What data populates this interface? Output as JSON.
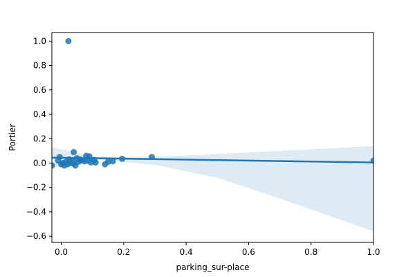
{
  "chart_data": {
    "type": "scatter",
    "title": "",
    "xlabel": "parking_sur-place",
    "ylabel": "Portier",
    "xlim": [
      -0.03,
      1.0
    ],
    "ylim": [
      -0.65,
      1.07
    ],
    "xticks": [
      0.0,
      0.2,
      0.4,
      0.6,
      0.8,
      1.0
    ],
    "xtick_labels": [
      "0.0",
      "0.2",
      "0.4",
      "0.6",
      "0.8",
      "1.0"
    ],
    "yticks": [
      1.0,
      0.8,
      0.6,
      0.4,
      0.2,
      0.0,
      -0.2,
      -0.4,
      -0.6
    ],
    "ytick_labels": [
      "1.0",
      "0.8",
      "0.6",
      "0.4",
      "0.2",
      "0.0",
      "−0.2",
      "−0.4",
      "−0.6"
    ],
    "grid": false,
    "colors": {
      "points": "#1f77b4",
      "line": "#1f77b4",
      "band": "#1f77b4"
    },
    "points": [
      {
        "x": -0.03,
        "y": -0.02
      },
      {
        "x": 0.023,
        "y": 1.0
      },
      {
        "x": -0.005,
        "y": 0.05
      },
      {
        "x": -0.01,
        "y": 0.02
      },
      {
        "x": 0.0,
        "y": -0.01
      },
      {
        "x": 0.005,
        "y": 0.0
      },
      {
        "x": 0.01,
        "y": -0.02
      },
      {
        "x": 0.015,
        "y": 0.01
      },
      {
        "x": 0.02,
        "y": -0.01
      },
      {
        "x": 0.025,
        "y": 0.03
      },
      {
        "x": 0.03,
        "y": 0.0
      },
      {
        "x": 0.035,
        "y": 0.02
      },
      {
        "x": 0.04,
        "y": -0.005
      },
      {
        "x": 0.04,
        "y": 0.09
      },
      {
        "x": 0.045,
        "y": -0.02
      },
      {
        "x": 0.05,
        "y": 0.04
      },
      {
        "x": 0.055,
        "y": 0.01
      },
      {
        "x": 0.06,
        "y": 0.03
      },
      {
        "x": 0.065,
        "y": 0.02
      },
      {
        "x": 0.07,
        "y": 0.025
      },
      {
        "x": 0.075,
        "y": 0.015
      },
      {
        "x": 0.08,
        "y": 0.06
      },
      {
        "x": 0.085,
        "y": 0.02
      },
      {
        "x": 0.09,
        "y": 0.055
      },
      {
        "x": 0.095,
        "y": 0.005
      },
      {
        "x": 0.105,
        "y": 0.025
      },
      {
        "x": 0.11,
        "y": 0.005
      },
      {
        "x": 0.14,
        "y": -0.01
      },
      {
        "x": 0.15,
        "y": 0.01
      },
      {
        "x": 0.165,
        "y": 0.015
      },
      {
        "x": 0.195,
        "y": 0.035
      },
      {
        "x": 0.29,
        "y": 0.05
      },
      {
        "x": 1.0,
        "y": 0.02
      }
    ],
    "regression_line": {
      "x": [
        -0.03,
        1.0
      ],
      "y": [
        0.045,
        0.005
      ]
    },
    "confidence_band": {
      "x": [
        -0.03,
        0.1,
        0.3,
        0.5,
        0.7,
        1.0
      ],
      "upper": [
        0.13,
        0.055,
        0.05,
        0.075,
        0.1,
        0.14
      ],
      "lower": [
        -0.04,
        0.03,
        -0.015,
        -0.12,
        -0.29,
        -0.56
      ]
    }
  }
}
